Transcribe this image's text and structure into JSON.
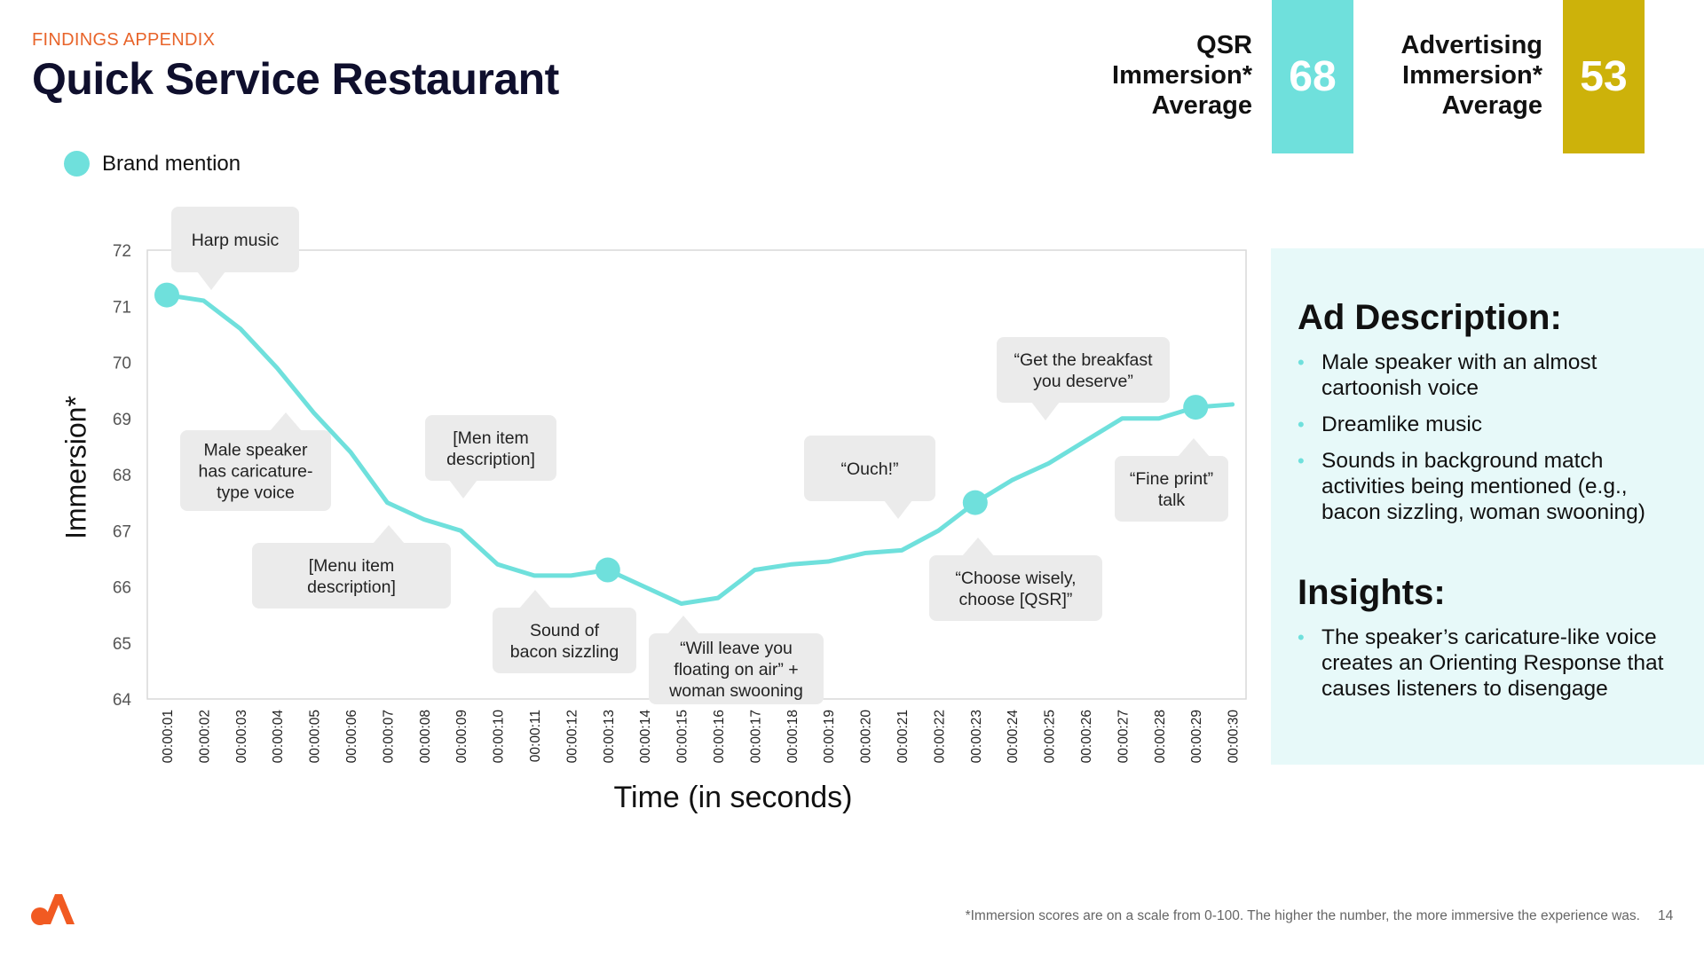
{
  "header": {
    "eyebrow": "FINDINGS APPENDIX",
    "title": "Quick Service Restaurant"
  },
  "kpis": [
    {
      "line1": "QSR",
      "line2": "Immersion*",
      "line3": "Average",
      "value": "68",
      "color": "#6fe0dc"
    },
    {
      "line1": "Advertising",
      "line2": "Immersion*",
      "line3": "Average",
      "value": "53",
      "color": "#cdb20a"
    }
  ],
  "legend": {
    "label": "Brand mention",
    "color": "#6fe0dc"
  },
  "chart_data": {
    "type": "line",
    "xlabel": "Time (in seconds)",
    "ylabel": "Immersion*",
    "ylim": [
      64,
      72
    ],
    "yticks": [
      "64",
      "65",
      "66",
      "67",
      "68",
      "69",
      "70",
      "71",
      "72"
    ],
    "categories": [
      "00:00:01",
      "00:00:02",
      "00:00:03",
      "00:00:04",
      "00:00:05",
      "00:00:06",
      "00:00:07",
      "00:00:08",
      "00:00:09",
      "00:00:10",
      "00:00:11",
      "00:00:12",
      "00:00:13",
      "00:00:14",
      "00:00:15",
      "00:00:16",
      "00:00:17",
      "00:00:18",
      "00:00:19",
      "00:00:20",
      "00:00:21",
      "00:00:22",
      "00:00:23",
      "00:00:24",
      "00:00:25",
      "00:00:26",
      "00:00:27",
      "00:00:28",
      "00:00:29",
      "00:00:30"
    ],
    "values": [
      71.2,
      71.1,
      70.6,
      69.9,
      69.1,
      68.4,
      67.5,
      67.2,
      67.0,
      66.4,
      66.2,
      66.2,
      66.3,
      66.0,
      65.7,
      65.8,
      66.3,
      66.4,
      66.45,
      66.6,
      66.65,
      67.0,
      67.5,
      67.9,
      68.2,
      68.6,
      69.0,
      69.0,
      69.2,
      69.25
    ],
    "brand_mentions": [
      "00:00:01",
      "00:00:13",
      "00:00:23",
      "00:00:29"
    ],
    "line_color": "#6fe0dc",
    "grid": false
  },
  "annotations": [
    {
      "text": "Harp music",
      "time": "00:00:02"
    },
    {
      "text": "Male speaker has caricature-type voice",
      "time": "00:00:04"
    },
    {
      "text": "[Menu item description]",
      "time": "00:00:07"
    },
    {
      "text": "[Men item description]",
      "time": "00:00:09"
    },
    {
      "text": "Sound of bacon sizzling",
      "time": "00:00:12"
    },
    {
      "text": "“Will leave you floating on air” + woman swooning",
      "time": "00:00:15"
    },
    {
      "text": "“Ouch!”",
      "time": "00:00:21"
    },
    {
      "text": "“Get the breakfast you deserve”",
      "time": "00:00:26"
    },
    {
      "text": "“Choose wisely, choose [QSR]”",
      "time": "00:00:23"
    },
    {
      "text": "“Fine print” talk",
      "time": "00:00:29"
    }
  ],
  "panel": {
    "description_heading": "Ad Description:",
    "description_items": [
      "Male speaker with an almost cartoonish voice",
      "Dreamlike music",
      "Sounds in background match activities being mentioned (e.g., bacon sizzling, woman swooning)"
    ],
    "insights_heading": "Insights:",
    "insights_items": [
      "The speaker’s caricature-like voice creates an Orienting Response that causes listeners to disengage"
    ]
  },
  "footer": {
    "footnote": "*Immersion scores are on a scale from 0-100. The higher the number, the more immersive the experience was.",
    "page": "14"
  },
  "colors": {
    "accent_orange": "#e8642a",
    "teal": "#6fe0dc",
    "gold": "#cdb20a",
    "callout_bg": "#ebebeb"
  }
}
